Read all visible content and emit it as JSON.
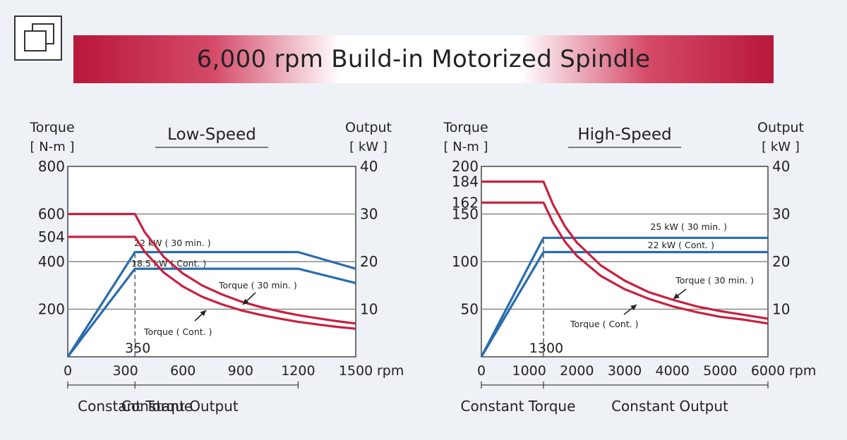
{
  "header": {
    "title": "6,000 rpm Build-in Motorized Spindle",
    "logo_icon": "overlap-squares-icon"
  },
  "colors": {
    "torque": "#c8213f",
    "output": "#2a6cae",
    "grid": "#888888",
    "axis": "#444444"
  },
  "chart_data": [
    {
      "type": "line",
      "title": "Low-Speed",
      "left_axis_label": [
        "Torque",
        "[ N-m ]"
      ],
      "right_axis_label": [
        "Output",
        "[ kW ]"
      ],
      "x_unit": "rpm",
      "x_range": [
        0,
        1500
      ],
      "x_ticks": [
        "0",
        "300",
        "600",
        "900",
        "1200",
        "1500"
      ],
      "torque_range": [
        0,
        800
      ],
      "torque_ticks": [
        "200",
        "400",
        "504",
        "600",
        "800"
      ],
      "output_range": [
        0,
        40
      ],
      "output_ticks": [
        "10",
        "20",
        "30",
        "40"
      ],
      "marker_label": "350",
      "marker_x": 350,
      "series": [
        {
          "name": "22 kW ( 30 min. )",
          "axis": "output",
          "x": [
            0,
            350,
            1200,
            1500
          ],
          "y": [
            0,
            22,
            22,
            18.5
          ]
        },
        {
          "name": "18.5 kW ( Cont. )",
          "axis": "output",
          "x": [
            0,
            350,
            1200,
            1500
          ],
          "y": [
            0,
            18.5,
            18.5,
            15.5
          ]
        },
        {
          "name": "Torque ( 30 min. )",
          "axis": "torque",
          "x": [
            0,
            350,
            400,
            500,
            600,
            700,
            800,
            900,
            1000,
            1100,
            1200,
            1300,
            1400,
            1500
          ],
          "y": [
            600,
            600,
            525,
            420,
            350,
            300,
            263,
            233,
            210,
            191,
            175,
            162,
            150,
            140
          ]
        },
        {
          "name": "Torque ( Cont. )",
          "axis": "torque",
          "x": [
            0,
            350,
            400,
            500,
            600,
            700,
            800,
            900,
            1000,
            1100,
            1200,
            1300,
            1400,
            1500
          ],
          "y": [
            504,
            504,
            442,
            354,
            295,
            252,
            221,
            196,
            177,
            161,
            147,
            136,
            126,
            118
          ]
        }
      ],
      "regions": [
        "Constant Torque",
        "Constant Output"
      ],
      "region_breaks": [
        0,
        350,
        1200
      ]
    },
    {
      "type": "line",
      "title": "High-Speed",
      "left_axis_label": [
        "Torque",
        "[ N-m ]"
      ],
      "right_axis_label": [
        "Output",
        "[ kW ]"
      ],
      "x_unit": "rpm",
      "x_range": [
        0,
        6000
      ],
      "x_ticks": [
        "0",
        "1000",
        "2000",
        "3000",
        "4000",
        "5000",
        "6000"
      ],
      "torque_range": [
        0,
        200
      ],
      "torque_ticks": [
        "50",
        "100",
        "150",
        "162",
        "184",
        "200"
      ],
      "output_range": [
        0,
        40
      ],
      "output_ticks": [
        "10",
        "20",
        "30",
        "40"
      ],
      "marker_label": "1300",
      "marker_x": 1300,
      "series": [
        {
          "name": "25 kW ( 30 min. )",
          "axis": "output",
          "x": [
            0,
            1300,
            6000
          ],
          "y": [
            0,
            25,
            25
          ]
        },
        {
          "name": "22 kW ( Cont. )",
          "axis": "output",
          "x": [
            0,
            1300,
            6000
          ],
          "y": [
            0,
            22,
            22
          ]
        },
        {
          "name": "Torque ( 30 min. )",
          "axis": "torque",
          "x": [
            0,
            1300,
            1500,
            1750,
            2000,
            2500,
            3000,
            3500,
            4000,
            4500,
            5000,
            5500,
            6000
          ],
          "y": [
            184,
            184,
            160,
            137,
            120,
            96,
            80,
            68,
            60,
            53,
            48,
            44,
            40
          ]
        },
        {
          "name": "Torque ( Cont. )",
          "axis": "torque",
          "x": [
            0,
            1300,
            1500,
            1750,
            2000,
            2500,
            3000,
            3500,
            4000,
            4500,
            5000,
            5500,
            6000
          ],
          "y": [
            162,
            162,
            141,
            121,
            106,
            85,
            71,
            61,
            53,
            47,
            42,
            39,
            35
          ]
        }
      ],
      "regions": [
        "Constant Torque",
        "Constant Output"
      ],
      "region_breaks": [
        0,
        1300,
        6000
      ]
    }
  ]
}
